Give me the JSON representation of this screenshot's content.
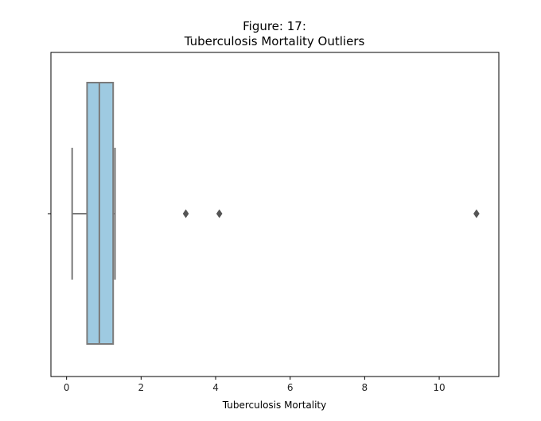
{
  "chart_data": {
    "type": "box",
    "title": [
      "Figure: 17:",
      "Tuberculosis Mortality Outliers"
    ],
    "xlabel": "Tuberculosis Mortality",
    "ylabel": "",
    "xlim": [
      -0.42,
      11.6
    ],
    "xticks": [
      0,
      2,
      4,
      6,
      8,
      10
    ],
    "grid": false,
    "orientation": "horizontal",
    "box": {
      "whisker_low": 0.15,
      "q1": 0.55,
      "median": 0.88,
      "q3": 1.25,
      "whisker_high": 1.3
    },
    "outliers": [
      3.2,
      4.1,
      11.0
    ],
    "colors": {
      "box_fill": "#9ecae1",
      "box_edge": "#7a7a7a",
      "frame": "#000000"
    }
  }
}
